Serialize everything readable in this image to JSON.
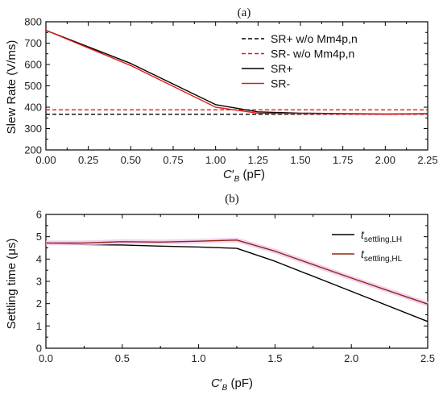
{
  "chart_data": [
    {
      "panel_label": "(a)",
      "type": "line",
      "ylabel": "Slew Rate (V/ms)",
      "xlabel_main": "C",
      "xlabel_sub": "B",
      "xlabel_prime": "′",
      "xlabel_unit": " (pF)",
      "xlim": [
        0,
        2.25
      ],
      "ylim": [
        200,
        800
      ],
      "xticks": [
        0,
        0.25,
        0.5,
        0.75,
        1.0,
        1.25,
        1.5,
        1.75,
        2.0,
        2.25
      ],
      "xtick_labels": [
        "0.00",
        "0.25",
        "0.50",
        "0.75",
        "1.00",
        "1.25",
        "1.50",
        "1.75",
        "2.00",
        "2.25"
      ],
      "yticks": [
        200,
        300,
        400,
        500,
        600,
        700,
        800
      ],
      "ytick_labels": [
        "200",
        "300",
        "400",
        "500",
        "600",
        "700",
        "800"
      ],
      "legend_position": "top-right",
      "series": [
        {
          "name": "SR+ w/o Mm4p,n",
          "color": "#000000",
          "dash": true,
          "x": [
            0,
            2.25
          ],
          "y": [
            367,
            367
          ]
        },
        {
          "name": "SR- w/o Mm4p,n",
          "color": "#e01b1b",
          "dash": true,
          "x": [
            0,
            2.25
          ],
          "y": [
            388,
            388
          ]
        },
        {
          "name": "SR+",
          "color": "#000000",
          "dash": false,
          "x": [
            0,
            0.5,
            1.0,
            1.25,
            1.5,
            2.0,
            2.25
          ],
          "y": [
            760,
            605,
            412,
            378,
            372,
            368,
            370
          ]
        },
        {
          "name": "SR-",
          "color": "#e01b1b",
          "dash": false,
          "x": [
            0,
            0.5,
            1.0,
            1.25,
            1.5,
            2.0,
            2.25
          ],
          "y": [
            760,
            595,
            400,
            372,
            370,
            367,
            369
          ]
        }
      ]
    },
    {
      "panel_label": "(b)",
      "type": "line",
      "ylabel": "Settling time (μs)",
      "xlabel_main": "C",
      "xlabel_sub": "B",
      "xlabel_prime": "′",
      "xlabel_unit": " (pF)",
      "xlim": [
        0,
        2.5
      ],
      "ylim": [
        0,
        6
      ],
      "xticks": [
        0,
        0.5,
        1.0,
        1.5,
        2.0,
        2.5
      ],
      "xtick_labels": [
        "0.0",
        "0.5",
        "1.0",
        "1.5",
        "2.0",
        "2.5"
      ],
      "yticks": [
        0,
        1,
        2,
        3,
        4,
        5,
        6
      ],
      "ytick_labels": [
        "0",
        "1",
        "2",
        "3",
        "4",
        "5",
        "6"
      ],
      "legend_position": "top-right",
      "series": [
        {
          "name_main": "t",
          "name_sub": "settling,LH",
          "color": "#000000",
          "x": [
            0,
            0.25,
            0.5,
            0.75,
            1.0,
            1.25,
            1.5,
            2.0,
            2.5
          ],
          "y": [
            4.72,
            4.65,
            4.63,
            4.58,
            4.54,
            4.48,
            3.9,
            2.55,
            1.2
          ]
        },
        {
          "name_main": "t",
          "name_sub": "settling,HL",
          "color": "#8b2a14",
          "x": [
            0,
            0.25,
            0.5,
            0.75,
            1.0,
            1.25,
            1.5,
            2.0,
            2.5
          ],
          "y": [
            4.72,
            4.72,
            4.78,
            4.76,
            4.8,
            4.85,
            4.35,
            3.15,
            1.98
          ]
        }
      ]
    }
  ]
}
